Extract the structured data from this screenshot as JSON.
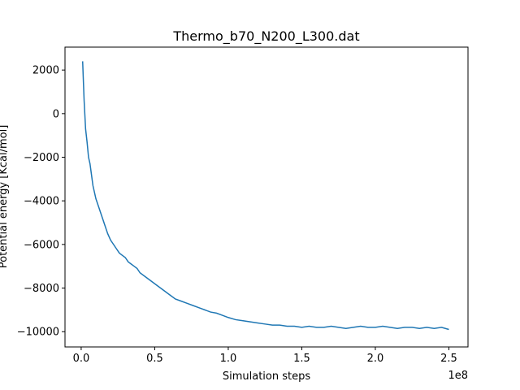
{
  "chart_data": {
    "type": "line",
    "title": "Thermo_b70_N200_L300.dat",
    "xlabel": "Simulation steps",
    "ylabel": "Potential energy [Kcal/mol]",
    "x_offset_label": "1e8",
    "x_scale": 100000000,
    "xlim": [
      -11000000.0,
      263000000.0
    ],
    "ylim": [
      -10700,
      3050
    ],
    "x_ticks": [
      0,
      50000000.0,
      100000000.0,
      150000000.0,
      200000000.0,
      250000000.0
    ],
    "x_tick_labels": [
      "0.0",
      "0.5",
      "1.0",
      "1.5",
      "2.0",
      "2.5"
    ],
    "y_ticks": [
      -10000,
      -8000,
      -6000,
      -4000,
      -2000,
      0,
      2000
    ],
    "y_tick_labels": [
      "−10000",
      "−8000",
      "−6000",
      "−4000",
      "−2000",
      "0",
      "2000"
    ],
    "grid": false,
    "line_color": "#1f77b4",
    "series": [
      {
        "name": "",
        "x": [
          1000000.0,
          2000000.0,
          3000000.0,
          4000000.0,
          5000000.0,
          6000000.0,
          7000000.0,
          8000000.0,
          10000000.0,
          12000000.0,
          14000000.0,
          16000000.0,
          18000000.0,
          20000000.0,
          22000000.0,
          24000000.0,
          26000000.0,
          28000000.0,
          30000000.0,
          32000000.0,
          34000000.0,
          36000000.0,
          38000000.0,
          40000000.0,
          44000000.0,
          48000000.0,
          52000000.0,
          56000000.0,
          60000000.0,
          64000000.0,
          68000000.0,
          72000000.0,
          76000000.0,
          80000000.0,
          84000000.0,
          88000000.0,
          92000000.0,
          96000000.0,
          100000000.0,
          105000000.0,
          110000000.0,
          115000000.0,
          120000000.0,
          125000000.0,
          130000000.0,
          135000000.0,
          140000000.0,
          145000000.0,
          150000000.0,
          155000000.0,
          160000000.0,
          165000000.0,
          170000000.0,
          175000000.0,
          180000000.0,
          185000000.0,
          190000000.0,
          195000000.0,
          200000000.0,
          205000000.0,
          210000000.0,
          215000000.0,
          220000000.0,
          225000000.0,
          230000000.0,
          235000000.0,
          240000000.0,
          245000000.0,
          250000000.0
        ],
        "values": [
          2400,
          600,
          -700,
          -1300,
          -2000,
          -2300,
          -2800,
          -3300,
          -3900,
          -4300,
          -4700,
          -5100,
          -5500,
          -5800,
          -6000,
          -6200,
          -6400,
          -6500,
          -6600,
          -6800,
          -6900,
          -7000,
          -7100,
          -7300,
          -7500,
          -7700,
          -7900,
          -8100,
          -8300,
          -8500,
          -8600,
          -8700,
          -8800,
          -8900,
          -9000,
          -9100,
          -9150,
          -9250,
          -9350,
          -9450,
          -9500,
          -9550,
          -9600,
          -9650,
          -9700,
          -9700,
          -9750,
          -9750,
          -9800,
          -9750,
          -9800,
          -9800,
          -9750,
          -9800,
          -9850,
          -9800,
          -9750,
          -9800,
          -9800,
          -9750,
          -9800,
          -9850,
          -9800,
          -9800,
          -9850,
          -9800,
          -9850,
          -9800,
          -9900
        ]
      }
    ]
  }
}
